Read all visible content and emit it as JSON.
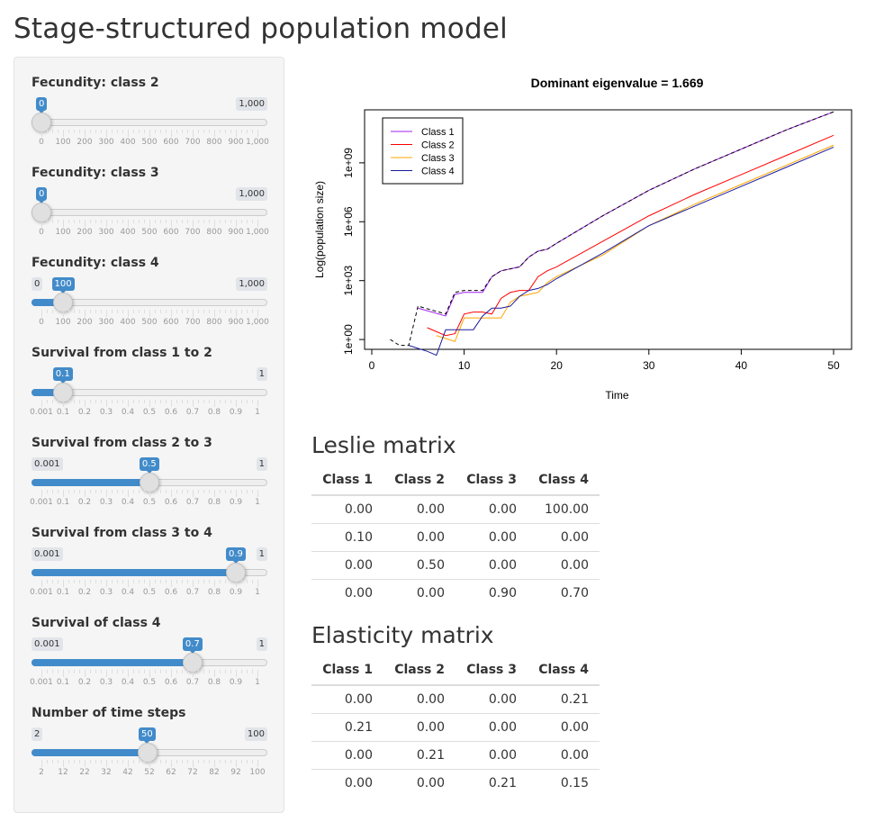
{
  "title": "Stage-structured population model",
  "sliders": [
    {
      "id": "fec2",
      "label": "Fecundity: class 2",
      "min_label": "0",
      "max_label": "1,000",
      "value_label": "0",
      "fraction": 0.0,
      "show_min": false,
      "grid": [
        "0",
        "100",
        "200",
        "300",
        "400",
        "500",
        "600",
        "700",
        "800",
        "900",
        "1,000"
      ]
    },
    {
      "id": "fec3",
      "label": "Fecundity: class 3",
      "min_label": "0",
      "max_label": "1,000",
      "value_label": "0",
      "fraction": 0.0,
      "show_min": false,
      "grid": [
        "0",
        "100",
        "200",
        "300",
        "400",
        "500",
        "600",
        "700",
        "800",
        "900",
        "1,000"
      ]
    },
    {
      "id": "fec4",
      "label": "Fecundity: class 4",
      "min_label": "0",
      "max_label": "1,000",
      "value_label": "100",
      "fraction": 0.1,
      "show_min": true,
      "grid": [
        "0",
        "100",
        "200",
        "300",
        "400",
        "500",
        "600",
        "700",
        "800",
        "900",
        "1,000"
      ]
    },
    {
      "id": "s12",
      "label": "Survival from class 1 to 2",
      "min_label": "0.001",
      "max_label": "1",
      "value_label": "0.1",
      "fraction": 0.0991,
      "show_min": false,
      "grid": [
        "0.001",
        "0.1",
        "0.2",
        "0.3",
        "0.4",
        "0.5",
        "0.6",
        "0.7",
        "0.8",
        "0.9",
        "1"
      ]
    },
    {
      "id": "s23",
      "label": "Survival from class 2 to 3",
      "min_label": "0.001",
      "max_label": "1",
      "value_label": "0.5",
      "fraction": 0.4995,
      "show_min": true,
      "grid": [
        "0.001",
        "0.1",
        "0.2",
        "0.3",
        "0.4",
        "0.5",
        "0.6",
        "0.7",
        "0.8",
        "0.9",
        "1"
      ]
    },
    {
      "id": "s34",
      "label": "Survival from class 3 to 4",
      "min_label": "0.001",
      "max_label": "1",
      "value_label": "0.9",
      "fraction": 0.8999,
      "show_min": true,
      "grid": [
        "0.001",
        "0.1",
        "0.2",
        "0.3",
        "0.4",
        "0.5",
        "0.6",
        "0.7",
        "0.8",
        "0.9",
        "1"
      ]
    },
    {
      "id": "s44",
      "label": "Survival of class 4",
      "min_label": "0.001",
      "max_label": "1",
      "value_label": "0.7",
      "fraction": 0.6997,
      "show_min": true,
      "grid": [
        "0.001",
        "0.1",
        "0.2",
        "0.3",
        "0.4",
        "0.5",
        "0.6",
        "0.7",
        "0.8",
        "0.9",
        "1"
      ]
    },
    {
      "id": "steps",
      "label": "Number of time steps",
      "min_label": "2",
      "max_label": "100",
      "value_label": "50",
      "fraction": 0.4898,
      "show_min": true,
      "grid": [
        "2",
        "12",
        "22",
        "32",
        "42",
        "52",
        "62",
        "72",
        "82",
        "92",
        "100"
      ]
    }
  ],
  "chart_data": {
    "type": "line",
    "title": "Dominant eigenvalue =  1.669",
    "xlabel": "Time",
    "ylabel": "Log(population size)",
    "xlim": [
      0,
      50
    ],
    "log10_ylim": [
      -0.5,
      11.7
    ],
    "x_ticks": [
      0,
      10,
      20,
      30,
      40,
      50
    ],
    "y_ticks": [
      {
        "log10": 0,
        "label": "1e+00"
      },
      {
        "log10": 3,
        "label": "1e+03"
      },
      {
        "log10": 6,
        "label": "1e+06"
      },
      {
        "log10": 9,
        "label": "1e+09"
      }
    ],
    "y_scale": "log",
    "legend_position": "top-left",
    "series": [
      {
        "name": "Class 1",
        "color": "#a020f0",
        "x": [
          5,
          8,
          9,
          10,
          11,
          12,
          13,
          14,
          15,
          16,
          17,
          18,
          19,
          20,
          25,
          30,
          35,
          40,
          45,
          50
        ],
        "log10_y": [
          1.6,
          1.2,
          2.3,
          2.4,
          2.4,
          2.4,
          3.2,
          3.5,
          3.6,
          3.7,
          4.2,
          4.5,
          4.6,
          4.9,
          6.3,
          7.6,
          8.7,
          9.7,
          10.7,
          11.6
        ]
      },
      {
        "name": "Class 2",
        "color": "#ff0000",
        "x": [
          6,
          8,
          9,
          10,
          11,
          12,
          13,
          14,
          15,
          16,
          17,
          18,
          19,
          20,
          25,
          30,
          35,
          40,
          45,
          50
        ],
        "log10_y": [
          0.6,
          0.2,
          0.3,
          1.3,
          1.4,
          1.4,
          1.3,
          2.1,
          2.4,
          2.5,
          2.5,
          3.2,
          3.5,
          3.7,
          5.0,
          6.3,
          7.4,
          8.4,
          9.4,
          10.4
        ]
      },
      {
        "name": "Class 3",
        "color": "#ffa500",
        "x": [
          7,
          9,
          10,
          11,
          12,
          13,
          14,
          15,
          16,
          17,
          18,
          19,
          20,
          25,
          30,
          35,
          40,
          45,
          50
        ],
        "log10_y": [
          0.2,
          -0.1,
          1.1,
          1.1,
          1.1,
          1.1,
          1.1,
          1.9,
          2.2,
          2.3,
          2.4,
          2.9,
          3.2,
          4.3,
          5.8,
          6.9,
          7.9,
          8.9,
          9.9
        ]
      },
      {
        "name": "Class 4",
        "color": "#1b1b9e",
        "x": [
          4,
          6,
          7,
          8,
          9,
          10,
          11,
          12,
          13,
          14,
          15,
          16,
          17,
          18,
          19,
          20,
          25,
          30,
          35,
          40,
          45,
          50
        ],
        "log10_y": [
          -0.3,
          -0.6,
          -0.8,
          0.5,
          0.5,
          0.5,
          0.5,
          1.2,
          1.6,
          1.6,
          1.7,
          2.2,
          2.5,
          2.6,
          2.8,
          3.1,
          4.4,
          5.8,
          6.8,
          7.8,
          8.8,
          9.8
        ]
      },
      {
        "name": "",
        "color": "#000000",
        "dashed": true,
        "x": [
          2,
          3,
          4,
          5,
          8,
          9,
          10,
          11,
          12,
          13,
          14,
          15,
          16,
          17,
          18,
          19,
          20,
          25,
          30,
          35,
          40,
          45,
          50
        ],
        "log10_y": [
          0.0,
          -0.3,
          -0.3,
          1.7,
          1.3,
          2.4,
          2.5,
          2.5,
          2.5,
          3.2,
          3.5,
          3.6,
          3.7,
          4.2,
          4.5,
          4.6,
          4.9,
          6.3,
          7.6,
          8.7,
          9.7,
          10.7,
          11.6
        ]
      }
    ]
  },
  "leslie": {
    "title": "Leslie matrix",
    "headers": [
      "Class 1",
      "Class 2",
      "Class 3",
      "Class 4"
    ],
    "rows": [
      [
        "0.00",
        "0.00",
        "0.00",
        "100.00"
      ],
      [
        "0.10",
        "0.00",
        "0.00",
        "0.00"
      ],
      [
        "0.00",
        "0.50",
        "0.00",
        "0.00"
      ],
      [
        "0.00",
        "0.00",
        "0.90",
        "0.70"
      ]
    ]
  },
  "elasticity": {
    "title": "Elasticity matrix",
    "headers": [
      "Class 1",
      "Class 2",
      "Class 3",
      "Class 4"
    ],
    "rows": [
      [
        "0.00",
        "0.00",
        "0.00",
        "0.21"
      ],
      [
        "0.21",
        "0.00",
        "0.00",
        "0.00"
      ],
      [
        "0.00",
        "0.21",
        "0.00",
        "0.00"
      ],
      [
        "0.00",
        "0.00",
        "0.21",
        "0.15"
      ]
    ]
  }
}
